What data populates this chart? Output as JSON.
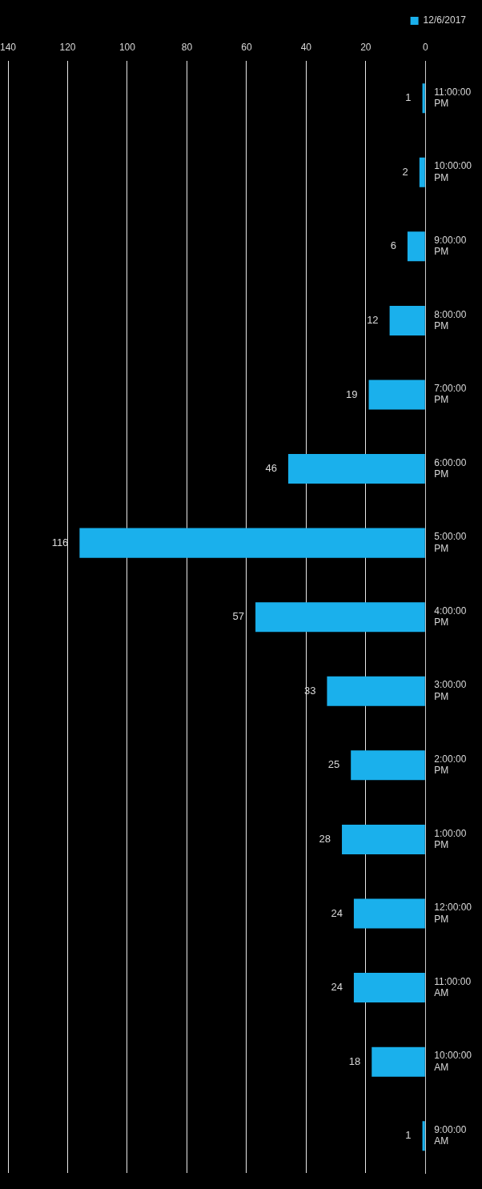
{
  "chart_data": {
    "type": "bar",
    "orientation": "horizontal",
    "categories": [
      "11:00:00 PM",
      "10:00:00 PM",
      "9:00:00 PM",
      "8:00:00 PM",
      "7:00:00 PM",
      "6:00:00 PM",
      "5:00:00 PM",
      "4:00:00 PM",
      "3:00:00 PM",
      "2:00:00 PM",
      "1:00:00 PM",
      "12:00:00 PM",
      "11:00:00 AM",
      "10:00:00 AM",
      "9:00:00 AM"
    ],
    "series": [
      {
        "name": "12/6/2017",
        "color": "#1ab0ec",
        "values": [
          1,
          2,
          6,
          12,
          19,
          46,
          116,
          57,
          33,
          25,
          28,
          24,
          24,
          18,
          1
        ]
      }
    ],
    "xlim": [
      140,
      0
    ],
    "xticks": [
      0,
      20,
      40,
      60,
      80,
      100,
      120,
      140
    ],
    "grid": "x",
    "legend": "top right",
    "data_labels": true
  }
}
